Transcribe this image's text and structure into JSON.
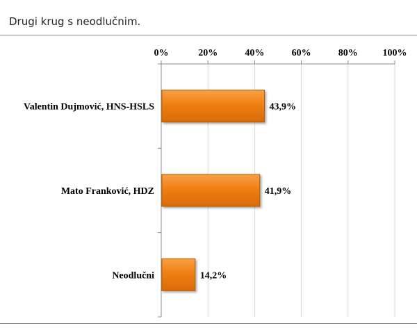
{
  "header": {
    "title": "Drugi krug s neodlučnim."
  },
  "colors": {
    "bar": "#f07f12",
    "bar_edge": "#b85b06",
    "grid": "#d9d9d9",
    "axis": "#8c8c8c"
  },
  "chart_data": {
    "type": "bar",
    "orientation": "horizontal",
    "title": "",
    "xlabel": "",
    "ylabel": "",
    "xlim": [
      0,
      100
    ],
    "x_ticks": [
      "0%",
      "20%",
      "40%",
      "60%",
      "80%",
      "100%"
    ],
    "x_axis_position": "top",
    "grid": true,
    "categories": [
      "Valentin Dujmović, HNS-HSLS",
      "Mato Franković, HDZ",
      "Neodlučni"
    ],
    "values": [
      43.9,
      41.9,
      14.2
    ],
    "data_labels": [
      "43,9%",
      "41,9%",
      "14,2%"
    ]
  }
}
